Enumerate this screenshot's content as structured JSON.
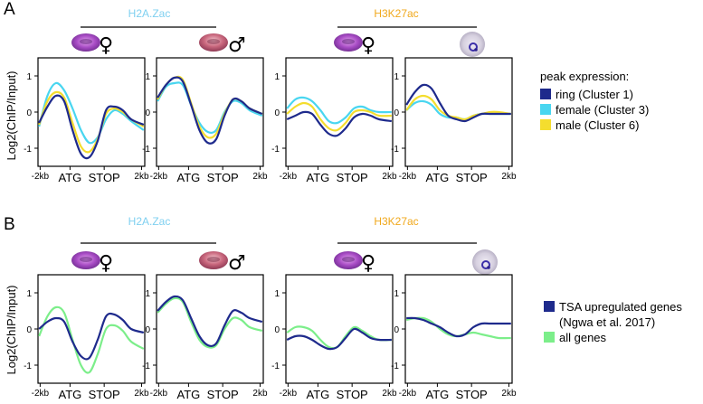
{
  "figure": {
    "panel_a_letter": "A",
    "panel_b_letter": "B",
    "mark_h2a": "H2A.Zac",
    "mark_h3k27ac": "H3K27ac",
    "color_h2a": "#7fd0f0",
    "color_h3k27ac": "#f0a81c",
    "female_symbol": "♀",
    "male_symbol": "♂",
    "ylabel": "Log2(ChIP/Input)",
    "legend_a_title": "peak expression:",
    "legend_b_line2": "(Ngwa et al. 2017)"
  },
  "chart_data": [
    {
      "panel": "A",
      "subplot": "H2A.Zac female",
      "type": "line",
      "x_ticks": [
        "-2kb",
        "ATG",
        "STOP",
        "2kb"
      ],
      "y_ticks": [
        "1",
        "0",
        "-1"
      ],
      "ylim": [
        -1.5,
        1.5
      ],
      "x": [
        0,
        0.08,
        0.16,
        0.24,
        0.32,
        0.4,
        0.48,
        0.56,
        0.64,
        0.72,
        0.8,
        0.88,
        1
      ],
      "series": [
        {
          "name": "ring (Cluster 1)",
          "color": "#1e2a8c",
          "values": [
            -0.3,
            0.15,
            0.45,
            0.3,
            -0.5,
            -1.15,
            -1.25,
            -0.8,
            0.05,
            0.15,
            0.05,
            -0.2,
            -0.35
          ]
        },
        {
          "name": "female (Cluster 3)",
          "color": "#49d6f0",
          "values": [
            -0.4,
            0.45,
            0.8,
            0.6,
            0.1,
            -0.5,
            -0.85,
            -0.7,
            -0.2,
            0.05,
            -0.05,
            -0.25,
            -0.5
          ]
        },
        {
          "name": "male (Cluster 6)",
          "color": "#f4dd2e",
          "values": [
            -0.35,
            0.3,
            0.55,
            0.4,
            -0.3,
            -0.95,
            -1.1,
            -0.75,
            -0.05,
            0.1,
            0.0,
            -0.2,
            -0.4
          ]
        }
      ]
    },
    {
      "panel": "A",
      "subplot": "H2A.Zac male",
      "type": "line",
      "x_ticks": [
        "-2kb",
        "ATG",
        "STOP",
        "2kb"
      ],
      "y_ticks": [
        "1",
        "0",
        "-1"
      ],
      "ylim": [
        -1.5,
        1.5
      ],
      "x": [
        0,
        0.08,
        0.16,
        0.24,
        0.32,
        0.4,
        0.48,
        0.56,
        0.64,
        0.72,
        0.8,
        0.88,
        1
      ],
      "series": [
        {
          "name": "ring (Cluster 1)",
          "color": "#1e2a8c",
          "values": [
            0.4,
            0.75,
            0.95,
            0.85,
            0.2,
            -0.5,
            -0.85,
            -0.75,
            -0.1,
            0.35,
            0.3,
            0.1,
            -0.05
          ]
        },
        {
          "name": "female (Cluster 3)",
          "color": "#49d6f0",
          "values": [
            0.3,
            0.7,
            0.8,
            0.75,
            0.2,
            -0.3,
            -0.55,
            -0.5,
            0.0,
            0.3,
            0.25,
            0.05,
            -0.1
          ]
        },
        {
          "name": "male (Cluster 6)",
          "color": "#f4dd2e",
          "values": [
            0.35,
            0.75,
            0.95,
            0.9,
            0.25,
            -0.4,
            -0.7,
            -0.6,
            -0.05,
            0.35,
            0.3,
            0.1,
            -0.05
          ]
        }
      ]
    },
    {
      "panel": "A",
      "subplot": "H3K27ac female",
      "type": "line",
      "x_ticks": [
        "-2kb",
        "ATG",
        "STOP",
        "2kb"
      ],
      "y_ticks": [
        "1",
        "0",
        "-1"
      ],
      "ylim": [
        -1.5,
        1.5
      ],
      "x": [
        0,
        0.08,
        0.16,
        0.24,
        0.32,
        0.4,
        0.48,
        0.56,
        0.64,
        0.72,
        0.8,
        0.88,
        1
      ],
      "series": [
        {
          "name": "ring (Cluster 1)",
          "color": "#1e2a8c",
          "values": [
            -0.2,
            -0.1,
            0.0,
            -0.05,
            -0.35,
            -0.6,
            -0.65,
            -0.45,
            -0.15,
            -0.05,
            -0.1,
            -0.2,
            -0.25
          ]
        },
        {
          "name": "female (Cluster 3)",
          "color": "#49d6f0",
          "values": [
            0.1,
            0.35,
            0.4,
            0.3,
            0.05,
            -0.25,
            -0.3,
            -0.15,
            0.1,
            0.15,
            0.05,
            0.0,
            0.0
          ]
        },
        {
          "name": "male (Cluster 6)",
          "color": "#f4dd2e",
          "values": [
            -0.05,
            0.15,
            0.25,
            0.15,
            -0.2,
            -0.45,
            -0.5,
            -0.3,
            0.0,
            0.05,
            0.0,
            -0.1,
            -0.1
          ]
        }
      ]
    },
    {
      "panel": "A",
      "subplot": "H3K27ac stage 4",
      "type": "line",
      "x_ticks": [
        "-2kb",
        "ATG",
        "STOP",
        "2kb"
      ],
      "y_ticks": [
        "1",
        "0",
        "-1"
      ],
      "ylim": [
        -1.5,
        1.5
      ],
      "x": [
        0,
        0.08,
        0.16,
        0.24,
        0.32,
        0.4,
        0.48,
        0.56,
        0.64,
        0.72,
        0.8,
        0.88,
        1
      ],
      "series": [
        {
          "name": "ring (Cluster 1)",
          "color": "#1e2a8c",
          "values": [
            0.2,
            0.55,
            0.75,
            0.65,
            0.25,
            -0.1,
            -0.2,
            -0.25,
            -0.15,
            -0.05,
            -0.05,
            -0.05,
            -0.05
          ]
        },
        {
          "name": "female (Cluster 3)",
          "color": "#49d6f0",
          "values": [
            0.05,
            0.25,
            0.3,
            0.2,
            -0.05,
            -0.15,
            -0.15,
            -0.2,
            -0.1,
            -0.05,
            -0.05,
            -0.05,
            -0.05
          ]
        },
        {
          "name": "male (Cluster 6)",
          "color": "#f4dd2e",
          "values": [
            0.05,
            0.35,
            0.45,
            0.35,
            0.05,
            -0.1,
            -0.15,
            -0.2,
            -0.1,
            -0.05,
            0.0,
            0.0,
            -0.05
          ]
        }
      ]
    },
    {
      "panel": "B",
      "subplot": "H2A.Zac female",
      "type": "line",
      "x_ticks": [
        "-2kb",
        "ATG",
        "STOP",
        "2kb"
      ],
      "y_ticks": [
        "1",
        "0",
        "-1"
      ],
      "ylim": [
        -1.5,
        1.5
      ],
      "x": [
        0,
        0.08,
        0.16,
        0.24,
        0.32,
        0.4,
        0.48,
        0.56,
        0.64,
        0.72,
        0.8,
        0.88,
        1
      ],
      "series": [
        {
          "name": "TSA upregulated genes",
          "color": "#1e2a8c",
          "values": [
            0.0,
            0.2,
            0.3,
            0.2,
            -0.35,
            -0.75,
            -0.8,
            -0.3,
            0.35,
            0.4,
            0.25,
            0.0,
            -0.1
          ]
        },
        {
          "name": "all genes",
          "color": "#7cee8a",
          "values": [
            -0.2,
            0.35,
            0.6,
            0.45,
            -0.3,
            -1.0,
            -1.2,
            -0.7,
            0.0,
            0.1,
            -0.05,
            -0.35,
            -0.55
          ]
        }
      ]
    },
    {
      "panel": "B",
      "subplot": "H2A.Zac male",
      "type": "line",
      "x_ticks": [
        "-2kb",
        "ATG",
        "STOP",
        "2kb"
      ],
      "y_ticks": [
        "1",
        "0",
        "-1"
      ],
      "ylim": [
        -1.5,
        1.5
      ],
      "x": [
        0,
        0.08,
        0.16,
        0.24,
        0.32,
        0.4,
        0.48,
        0.56,
        0.64,
        0.72,
        0.8,
        0.88,
        1
      ],
      "series": [
        {
          "name": "TSA upregulated genes",
          "color": "#1e2a8c",
          "values": [
            0.5,
            0.75,
            0.9,
            0.8,
            0.3,
            -0.2,
            -0.45,
            -0.4,
            0.1,
            0.5,
            0.45,
            0.3,
            0.2
          ]
        },
        {
          "name": "all genes",
          "color": "#7cee8a",
          "values": [
            0.45,
            0.7,
            0.85,
            0.75,
            0.2,
            -0.3,
            -0.5,
            -0.45,
            0.0,
            0.3,
            0.25,
            0.05,
            -0.05
          ]
        }
      ]
    },
    {
      "panel": "B",
      "subplot": "H3K27ac female",
      "type": "line",
      "x_ticks": [
        "-2kb",
        "ATG",
        "STOP",
        "2kb"
      ],
      "y_ticks": [
        "1",
        "0",
        "-1"
      ],
      "ylim": [
        -1.5,
        1.5
      ],
      "x": [
        0,
        0.08,
        0.16,
        0.24,
        0.32,
        0.4,
        0.48,
        0.56,
        0.64,
        0.72,
        0.8,
        0.88,
        1
      ],
      "series": [
        {
          "name": "TSA upregulated genes",
          "color": "#1e2a8c",
          "values": [
            -0.3,
            -0.2,
            -0.2,
            -0.3,
            -0.45,
            -0.55,
            -0.5,
            -0.25,
            0.0,
            -0.1,
            -0.25,
            -0.3,
            -0.3
          ]
        },
        {
          "name": "all genes",
          "color": "#7cee8a",
          "values": [
            -0.1,
            0.05,
            0.05,
            -0.05,
            -0.3,
            -0.5,
            -0.5,
            -0.2,
            0.05,
            -0.05,
            -0.2,
            -0.3,
            -0.3
          ]
        }
      ]
    },
    {
      "panel": "B",
      "subplot": "H3K27ac stage 4",
      "type": "line",
      "x_ticks": [
        "-2kb",
        "ATG",
        "STOP",
        "2kb"
      ],
      "y_ticks": [
        "1",
        "0",
        "-1"
      ],
      "ylim": [
        -1.5,
        1.5
      ],
      "x": [
        0,
        0.08,
        0.16,
        0.24,
        0.32,
        0.4,
        0.48,
        0.56,
        0.64,
        0.72,
        0.8,
        0.88,
        1
      ],
      "series": [
        {
          "name": "TSA upregulated genes",
          "color": "#1e2a8c",
          "values": [
            0.3,
            0.3,
            0.25,
            0.15,
            0.05,
            -0.1,
            -0.2,
            -0.15,
            0.05,
            0.15,
            0.15,
            0.15,
            0.15
          ]
        },
        {
          "name": "all genes",
          "color": "#7cee8a",
          "values": [
            0.25,
            0.3,
            0.3,
            0.2,
            0.0,
            -0.15,
            -0.2,
            -0.15,
            -0.1,
            -0.15,
            -0.2,
            -0.25,
            -0.25
          ]
        }
      ]
    }
  ],
  "legend_a": [
    {
      "label": "ring (Cluster 1)",
      "color": "#1e2a8c"
    },
    {
      "label": "female (Cluster 3)",
      "color": "#49d6f0"
    },
    {
      "label": "male (Cluster 6)",
      "color": "#f4dd2e"
    }
  ],
  "legend_b": [
    {
      "label": "TSA upregulated genes",
      "color": "#1e2a8c"
    },
    {
      "label": "all genes",
      "color": "#7cee8a"
    }
  ]
}
